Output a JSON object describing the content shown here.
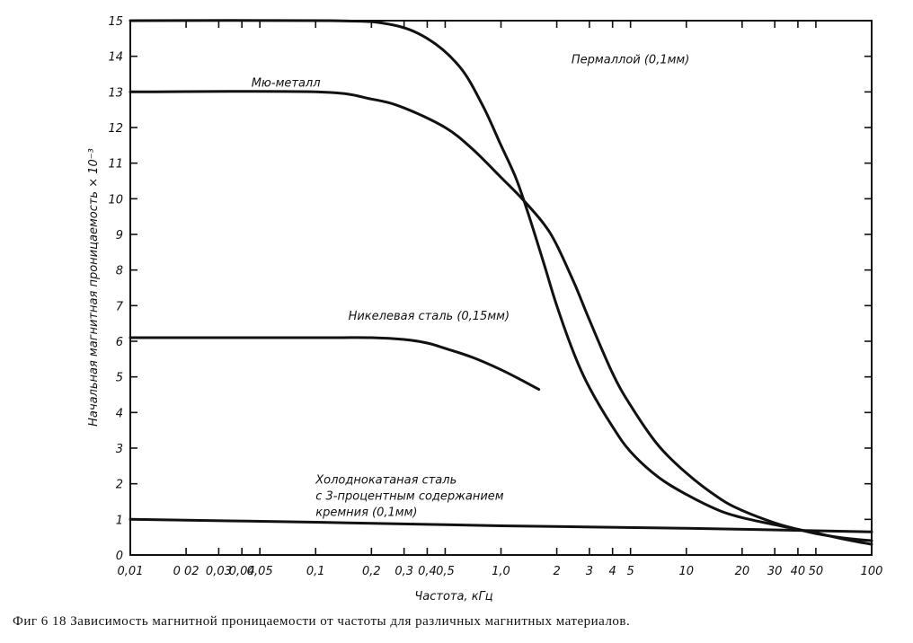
{
  "caption": "Фиг 6 18 Зависимость магнитной проницаемости от частоты для различных магнитных материалов.",
  "chart_data": {
    "type": "line",
    "x_scale": "log",
    "xlim": [
      0.01,
      100
    ],
    "ylim": [
      0,
      15
    ],
    "xlabel": "Частота, кГц",
    "ylabel": "Начальная магнитная проницаемость × 10⁻³",
    "grid": false,
    "x_ticks": [
      {
        "v": 0.01,
        "label": "0,01"
      },
      {
        "v": 0.02,
        "label": "0 02"
      },
      {
        "v": 0.03,
        "label": "0,03"
      },
      {
        "v": 0.04,
        "label": "0,04"
      },
      {
        "v": 0.05,
        "label": "0,05"
      },
      {
        "v": 0.1,
        "label": "0,1"
      },
      {
        "v": 0.2,
        "label": "0,2"
      },
      {
        "v": 0.3,
        "label": "0,3"
      },
      {
        "v": 0.4,
        "label": "0,4"
      },
      {
        "v": 0.5,
        "label": "0,5"
      },
      {
        "v": 1.0,
        "label": "1,0"
      },
      {
        "v": 2,
        "label": "2"
      },
      {
        "v": 3,
        "label": "3"
      },
      {
        "v": 4,
        "label": "4"
      },
      {
        "v": 5,
        "label": "5"
      },
      {
        "v": 10,
        "label": "10"
      },
      {
        "v": 20,
        "label": "20"
      },
      {
        "v": 30,
        "label": "30"
      },
      {
        "v": 40,
        "label": "40"
      },
      {
        "v": 50,
        "label": "50"
      },
      {
        "v": 100,
        "label": "100"
      }
    ],
    "y_ticks": [
      0,
      1,
      2,
      3,
      4,
      5,
      6,
      7,
      8,
      9,
      10,
      11,
      12,
      13,
      14,
      15
    ],
    "series": [
      {
        "name": "Пермаллой (0,1мм)",
        "points": [
          [
            0.01,
            15
          ],
          [
            0.12,
            15
          ],
          [
            0.25,
            14.9
          ],
          [
            0.4,
            14.5
          ],
          [
            0.6,
            13.7
          ],
          [
            0.8,
            12.6
          ],
          [
            1.0,
            11.5
          ],
          [
            1.2,
            10.6
          ],
          [
            1.4,
            9.6
          ],
          [
            1.7,
            8.2
          ],
          [
            2.0,
            7.0
          ],
          [
            2.5,
            5.6
          ],
          [
            3.0,
            4.7
          ],
          [
            4.0,
            3.6
          ],
          [
            5.0,
            2.9
          ],
          [
            7.0,
            2.2
          ],
          [
            10.0,
            1.7
          ],
          [
            15.0,
            1.25
          ],
          [
            20.0,
            1.05
          ],
          [
            30.0,
            0.85
          ],
          [
            40.0,
            0.72
          ],
          [
            50.0,
            0.62
          ],
          [
            70.0,
            0.45
          ],
          [
            100.0,
            0.3
          ]
        ]
      },
      {
        "name": "Мю-металл",
        "points": [
          [
            0.01,
            13
          ],
          [
            0.1,
            13
          ],
          [
            0.2,
            12.8
          ],
          [
            0.3,
            12.55
          ],
          [
            0.5,
            12.0
          ],
          [
            0.7,
            11.4
          ],
          [
            1.0,
            10.6
          ],
          [
            1.3,
            10.0
          ],
          [
            1.7,
            9.3
          ],
          [
            2.0,
            8.7
          ],
          [
            2.5,
            7.6
          ],
          [
            3.0,
            6.6
          ],
          [
            4.0,
            5.1
          ],
          [
            5.0,
            4.2
          ],
          [
            7.0,
            3.1
          ],
          [
            10.0,
            2.3
          ],
          [
            15.0,
            1.6
          ],
          [
            20.0,
            1.25
          ],
          [
            30.0,
            0.9
          ],
          [
            40.0,
            0.72
          ],
          [
            50.0,
            0.6
          ],
          [
            70.0,
            0.48
          ],
          [
            100.0,
            0.4
          ]
        ]
      },
      {
        "name": "Никелевая сталь (0,15мм)",
        "points": [
          [
            0.01,
            6.1
          ],
          [
            0.1,
            6.1
          ],
          [
            0.2,
            6.1
          ],
          [
            0.3,
            6.05
          ],
          [
            0.4,
            5.95
          ],
          [
            0.5,
            5.8
          ],
          [
            0.7,
            5.55
          ],
          [
            1.0,
            5.2
          ],
          [
            1.3,
            4.9
          ],
          [
            1.6,
            4.65
          ]
        ]
      },
      {
        "name": "Холоднокатаная сталь с 3-процентным содержанием кремния (0,1мм)",
        "points": [
          [
            0.01,
            1.0
          ],
          [
            0.1,
            0.92
          ],
          [
            1.0,
            0.82
          ],
          [
            10.0,
            0.75
          ],
          [
            100.0,
            0.65
          ]
        ]
      }
    ],
    "annotations": [
      {
        "id": "permalloy",
        "text": "Пермаллой (0,1мм)",
        "at": [
          2.4,
          13.8
        ]
      },
      {
        "id": "mumetal",
        "text": "Мю-металл",
        "at": [
          0.045,
          13.15
        ]
      },
      {
        "id": "nickel",
        "text": "Никелевая сталь (0,15мм)",
        "at": [
          0.15,
          6.6
        ]
      },
      {
        "id": "sil1",
        "text": "Холоднокатаная  сталь",
        "at": [
          0.1,
          2.0
        ]
      },
      {
        "id": "sil2",
        "text": "с 3-процентным содержанием",
        "at": [
          0.1,
          1.55
        ]
      },
      {
        "id": "sil3",
        "text": "кремния (0,1мм)",
        "at": [
          0.1,
          1.1
        ]
      }
    ]
  }
}
